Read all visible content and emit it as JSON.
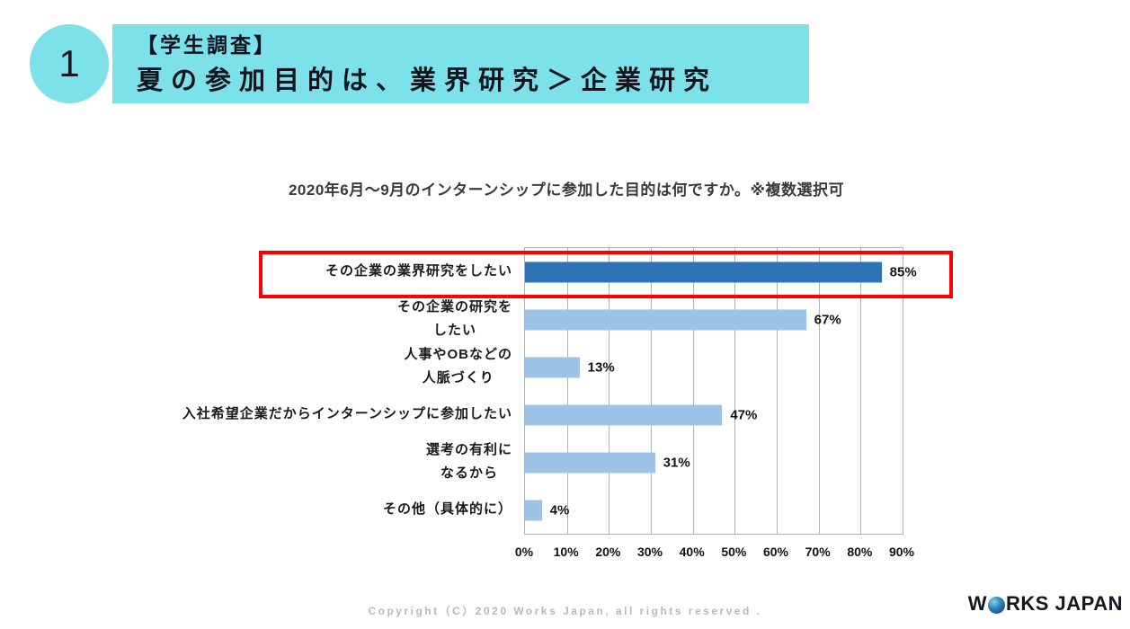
{
  "slide": {
    "number": "1",
    "title_line1": "【学生調査】",
    "title_line2": "夏の参加目的は、業界研究＞企業研究",
    "banner_color": "#7ce1e9"
  },
  "chart_data": {
    "type": "bar",
    "orientation": "horizontal",
    "title": "2020年6月～9月のインターンシップに参加した目的は何ですか。※複数選択可",
    "categories": [
      [
        "その企業の業界研究をしたい"
      ],
      [
        "その企業の研究を",
        "したい"
      ],
      [
        "人事やOBなどの",
        "人脈づくり"
      ],
      [
        "入社希望企業だからインターンシップに参加したい"
      ],
      [
        "選考の有利に",
        "なるから"
      ],
      [
        "その他（具体的に）"
      ]
    ],
    "values": [
      85,
      67,
      13,
      47,
      31,
      4
    ],
    "value_labels": [
      "85%",
      "67%",
      "13%",
      "47%",
      "31%",
      "4%"
    ],
    "xlim": [
      0,
      90
    ],
    "x_tick_step": 10,
    "x_tick_labels": [
      "0%",
      "10%",
      "20%",
      "30%",
      "40%",
      "50%",
      "60%",
      "70%",
      "80%",
      "90%"
    ],
    "grid": true,
    "legend": false,
    "highlight_index": 0,
    "bar_color": "#9dc3e6",
    "highlight_bar_color": "#2e74b5",
    "highlight_box_color": "#ff0000",
    "gridline_color": "#b3b3b3"
  },
  "footer": {
    "copyright": "Copyright（C）2020 Works Japan, all rights reserved .",
    "logo": {
      "prefix": "W",
      "o_icon": "blue-sphere-o-icon",
      "suffix": "RKS JAPAN"
    }
  }
}
